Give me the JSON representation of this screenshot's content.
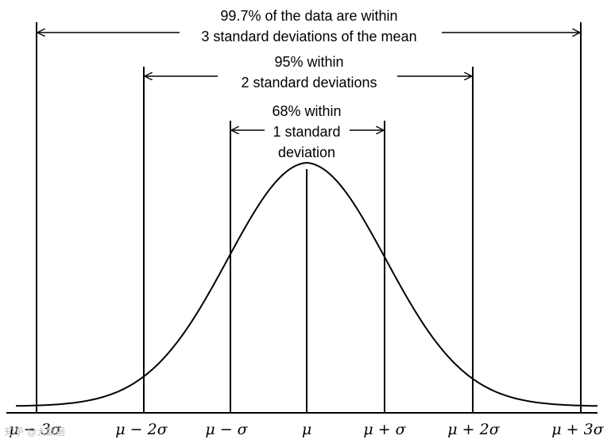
{
  "annotations": {
    "sd3_line1": "99.7% of the data are within",
    "sd3_line2": "3 standard deviations of the mean",
    "sd2_line1": "95% within",
    "sd2_line2": "2 standard deviations",
    "sd1_line1": "68% within",
    "sd1_line2": "1 standard",
    "sd1_line3": "deviation"
  },
  "x_axis": {
    "ticks": [
      "μ − 3σ",
      "μ − 2σ",
      "μ − σ",
      "μ",
      "μ + σ",
      "μ + 2σ",
      "μ + 3σ"
    ]
  },
  "watermark": "知乎 @大数据"
}
